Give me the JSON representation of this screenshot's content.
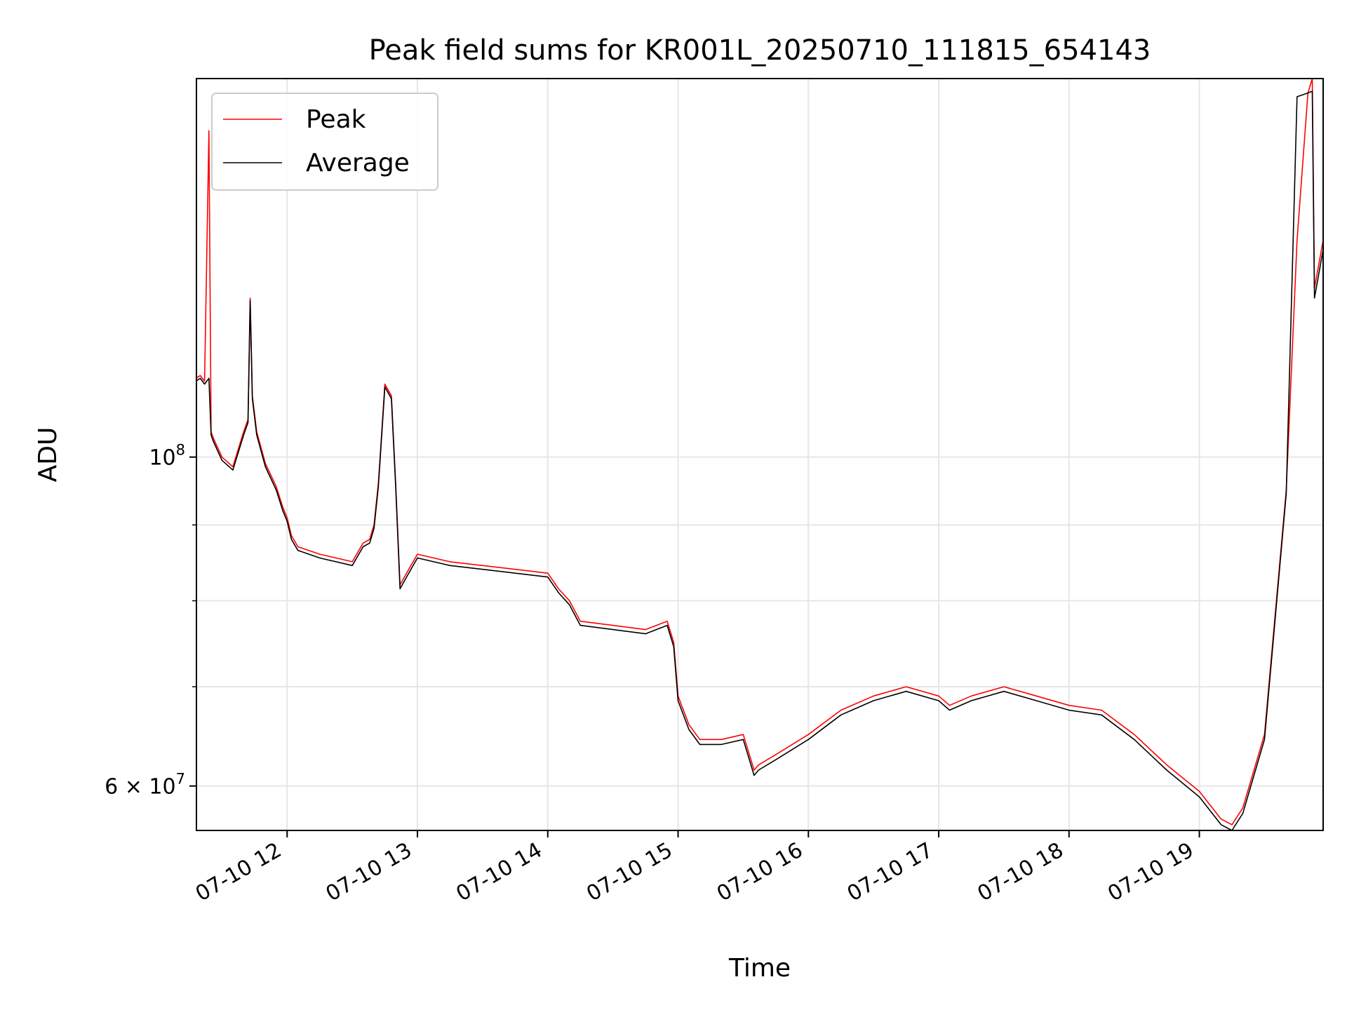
{
  "chart_data": {
    "type": "line",
    "title": "Peak field sums for KR001L_20250710_111815_654143",
    "xlabel": "Time",
    "ylabel": "ADU",
    "x_type": "datetime",
    "xlim": [
      "2025-07-10T11:18:15",
      "2025-07-10T19:57:00"
    ],
    "ylim": [
      56000000,
      180000000
    ],
    "y_scale": "log",
    "grid": true,
    "legend": "upper-left",
    "x_ticks": [
      {
        "value": "2025-07-10T12:00",
        "label": "07-10 12"
      },
      {
        "value": "2025-07-10T13:00",
        "label": "07-10 13"
      },
      {
        "value": "2025-07-10T14:00",
        "label": "07-10 14"
      },
      {
        "value": "2025-07-10T15:00",
        "label": "07-10 15"
      },
      {
        "value": "2025-07-10T16:00",
        "label": "07-10 16"
      },
      {
        "value": "2025-07-10T17:00",
        "label": "07-10 17"
      },
      {
        "value": "2025-07-10T18:00",
        "label": "07-10 18"
      },
      {
        "value": "2025-07-10T19:00",
        "label": "07-10 19"
      }
    ],
    "y_major_ticks": [
      {
        "value": 60000000,
        "base": "6 × 10",
        "exp": "7"
      },
      {
        "value": 100000000,
        "base": "10",
        "exp": "8"
      }
    ],
    "y_minor_ticks": [
      70000000,
      80000000,
      90000000
    ],
    "x": [
      "11:18",
      "11:20",
      "11:22",
      "11:24",
      "11:25",
      "11:26",
      "11:30",
      "11:35",
      "11:40",
      "11:42",
      "11:43",
      "11:44",
      "11:46",
      "11:50",
      "11:55",
      "11:58",
      "12:00",
      "12:02",
      "12:05",
      "12:15",
      "12:30",
      "12:35",
      "12:38",
      "12:40",
      "12:42",
      "12:45",
      "12:48",
      "12:50",
      "12:52",
      "12:55",
      "13:00",
      "13:15",
      "13:30",
      "13:45",
      "14:00",
      "14:05",
      "14:10",
      "14:15",
      "14:30",
      "14:45",
      "14:55",
      "14:58",
      "15:00",
      "15:05",
      "15:10",
      "15:20",
      "15:30",
      "15:35",
      "15:37",
      "15:45",
      "16:00",
      "16:15",
      "16:30",
      "16:45",
      "17:00",
      "17:05",
      "17:15",
      "17:30",
      "17:45",
      "18:00",
      "18:15",
      "18:30",
      "18:45",
      "19:00",
      "19:10",
      "19:15",
      "19:20",
      "19:30",
      "19:40",
      "19:45",
      "19:50",
      "19:52",
      "19:53",
      "19:57"
    ],
    "series": [
      {
        "name": "Peak",
        "color": "#ff0000",
        "values": [
          113000000,
          113500000,
          112500000,
          166000000,
          104000000,
          103000000,
          100000000,
          98500000,
          104000000,
          106000000,
          128000000,
          110000000,
          104000000,
          99000000,
          95500000,
          92500000,
          91000000,
          88500000,
          87000000,
          86000000,
          85000000,
          87500000,
          88000000,
          90000000,
          96000000,
          112000000,
          110000000,
          96000000,
          82000000,
          83500000,
          86000000,
          85000000,
          84500000,
          84000000,
          83500000,
          81500000,
          80000000,
          77500000,
          77000000,
          76500000,
          77500000,
          75000000,
          69000000,
          66000000,
          64500000,
          64500000,
          65000000,
          61500000,
          62000000,
          63000000,
          65000000,
          67500000,
          69000000,
          70000000,
          69000000,
          68000000,
          69000000,
          70000000,
          69000000,
          68000000,
          67500000,
          65000000,
          62000000,
          59500000,
          57000000,
          56500000,
          58000000,
          65000000,
          95000000,
          140000000,
          176000000,
          180000000,
          130000000,
          140000000
        ]
      },
      {
        "name": "Average",
        "color": "#000000",
        "values": [
          112500000,
          113000000,
          112000000,
          113000000,
          103500000,
          102500000,
          99500000,
          98000000,
          103500000,
          105500000,
          127500000,
          109500000,
          103500000,
          98500000,
          95000000,
          92000000,
          90500000,
          88000000,
          86500000,
          85500000,
          84500000,
          87000000,
          87500000,
          89500000,
          95500000,
          111500000,
          109500000,
          95500000,
          81500000,
          83000000,
          85500000,
          84500000,
          84000000,
          83500000,
          83000000,
          81000000,
          79500000,
          77000000,
          76500000,
          76000000,
          77000000,
          74500000,
          68500000,
          65500000,
          64000000,
          64000000,
          64500000,
          61000000,
          61500000,
          62500000,
          64500000,
          67000000,
          68500000,
          69500000,
          68500000,
          67500000,
          68500000,
          69500000,
          68500000,
          67500000,
          67000000,
          64500000,
          61500000,
          59000000,
          56500000,
          56000000,
          57500000,
          64500000,
          94500000,
          175000000,
          176000000,
          176500000,
          128000000,
          138000000
        ]
      }
    ]
  }
}
